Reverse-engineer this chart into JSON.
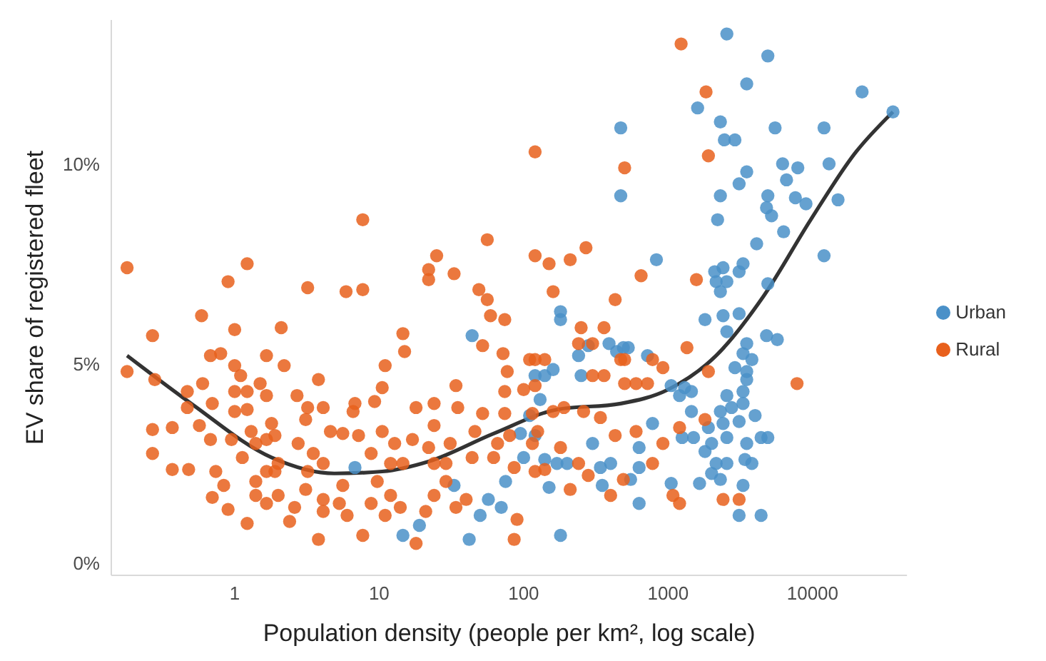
{
  "chart_data": {
    "type": "scatter",
    "xlabel": "Population density (people per km², log scale)",
    "ylabel": "EV share of registered fleet",
    "log": "x",
    "xlim": [
      0.14,
      45000
    ],
    "xticks": [
      1,
      10,
      100,
      1000,
      10000
    ],
    "ylim": [
      -0.3,
      13.6
    ],
    "yticks": [
      {
        "value": 0,
        "label": "0%"
      },
      {
        "value": 5,
        "label": "5%"
      },
      {
        "value": 10,
        "label": "10%"
      }
    ],
    "legend": "right",
    "marker": "circle",
    "series": [
      {
        "name": "Urban",
        "color": "#4a90c8",
        "x": [
          2550,
          4900,
          3500,
          22000,
          36000,
          1600,
          470,
          2300,
          2450,
          2900,
          5500,
          12000,
          470,
          6200,
          7900,
          13000,
          3500,
          3100,
          6600,
          2300,
          4900,
          7600,
          9000,
          15000,
          4800,
          5200,
          2200,
          6300,
          4100,
          12000,
          830,
          2100,
          2400,
          3300,
          3100,
          2150,
          2550,
          2300,
          4900,
          1800,
          2400,
          3100,
          4800,
          5700,
          180,
          180,
          390,
          530,
          2550,
          3500,
          3300,
          3800,
          2900,
          3500,
          3500,
          3300,
          2550,
          2750,
          3300,
          2300,
          4000,
          1300,
          1200,
          1450,
          1450,
          240,
          250,
          490,
          720,
          1050,
          1900,
          2400,
          3100,
          4400,
          4900,
          3500,
          2550,
          2000,
          1800,
          2150,
          2550,
          3400,
          3800,
          2000,
          2300,
          1650,
          3300,
          3100,
          4400,
          1500,
          1250,
          780,
          630,
          630,
          550,
          1050,
          630,
          180,
          300,
          400,
          130,
          140,
          160,
          440,
          280,
          120,
          170,
          200,
          140,
          150,
          340,
          350,
          44,
          6.8,
          14.6,
          19,
          33,
          42,
          50,
          57,
          70,
          75,
          100,
          110,
          120,
          95
        ],
        "values": [
          13.25,
          12.7,
          12.0,
          11.8,
          11.3,
          11.4,
          10.9,
          11.05,
          10.6,
          10.6,
          10.9,
          10.9,
          9.2,
          10.0,
          9.9,
          10.0,
          9.8,
          9.5,
          9.6,
          9.2,
          9.2,
          9.15,
          9.0,
          9.1,
          8.9,
          8.7,
          8.6,
          8.3,
          8.0,
          7.7,
          7.6,
          7.3,
          7.4,
          7.5,
          7.3,
          7.05,
          7.05,
          6.8,
          7.0,
          6.1,
          6.2,
          6.25,
          5.7,
          5.6,
          6.3,
          6.1,
          5.5,
          5.4,
          5.8,
          5.5,
          5.25,
          5.1,
          4.9,
          4.8,
          4.6,
          4.3,
          4.2,
          3.9,
          4.0,
          3.8,
          3.7,
          4.4,
          4.2,
          4.3,
          3.8,
          5.2,
          4.7,
          5.4,
          5.2,
          4.45,
          3.4,
          3.5,
          3.55,
          3.15,
          3.15,
          3.0,
          3.15,
          3.0,
          2.8,
          2.5,
          2.5,
          2.6,
          2.5,
          2.25,
          2.1,
          2.0,
          1.95,
          1.2,
          1.2,
          3.15,
          3.15,
          3.5,
          2.9,
          2.4,
          2.1,
          2.0,
          1.5,
          0.7,
          3.0,
          2.5,
          4.1,
          4.7,
          4.85,
          5.3,
          5.45,
          4.7,
          2.5,
          2.5,
          2.6,
          1.9,
          2.4,
          1.95,
          5.7,
          2.4,
          0.7,
          0.95,
          1.95,
          0.6,
          1.2,
          1.6,
          1.4,
          2.05,
          2.65,
          3.7,
          3.2,
          3.25
        ]
      },
      {
        "name": "Rural",
        "color": "#e8601c",
        "x": [
          1230,
          1830,
          1900,
          120,
          500,
          270,
          120,
          150,
          210,
          650,
          1570,
          160,
          430,
          360,
          7800,
          920,
          780,
          1900,
          1350,
          300,
          240,
          470,
          500,
          300,
          500,
          600,
          720,
          1800,
          2400,
          3100,
          1200,
          920,
          600,
          780,
          490,
          1080,
          1200,
          400,
          240,
          280,
          430,
          340,
          260,
          190,
          160,
          115,
          360,
          250,
          120,
          120,
          140,
          180,
          140,
          120,
          210,
          115,
          125,
          0.18,
          0.18,
          1.22,
          7.7,
          56,
          0.9,
          3.2,
          5.9,
          7.7,
          25,
          22,
          22,
          33,
          49,
          56,
          59,
          74,
          0.59,
          0.27,
          1.0,
          2.1,
          14.6,
          15,
          11,
          52,
          0.68,
          0.8,
          1.66,
          2.2,
          3.8,
          1.0,
          1.1,
          1.5,
          0.6,
          0.47,
          0.28,
          1.0,
          1.22,
          1.66,
          2.7,
          0.47,
          0.7,
          1.0,
          1.22,
          3.2,
          4.1,
          6.6,
          9.3,
          10.5,
          18,
          24,
          35,
          34,
          74,
          100,
          72,
          77,
          110,
          0.27,
          0.37,
          0.57,
          0.68,
          0.95,
          1.3,
          1.8,
          1.66,
          0.27,
          0.37,
          0.48,
          0.74,
          0.84,
          0.7,
          0.9,
          1.13,
          1.4,
          1.9,
          2.0,
          2.75,
          3.5,
          4.1,
          5.6,
          7.2,
          10.5,
          12.8,
          17,
          22,
          24,
          31,
          46,
          66,
          80,
          1.4,
          1.66,
          1.9,
          1.4,
          1.66,
          2.0,
          1.22,
          2.4,
          2.6,
          3.1,
          3.2,
          4.1,
          4.1,
          3.8,
          5.6,
          5.3,
          6.0,
          7.7,
          8.8,
          9.7,
          12,
          11,
          14,
          18,
          21,
          24,
          29,
          34,
          40,
          86,
          90,
          86,
          62,
          44,
          14.6,
          12,
          8.8,
          24,
          29,
          74,
          52,
          6.8,
          3.1,
          4.6
        ],
        "values": [
          13.0,
          11.8,
          10.2,
          10.3,
          9.9,
          7.9,
          7.7,
          7.5,
          7.6,
          7.2,
          7.1,
          6.8,
          6.6,
          5.9,
          4.5,
          4.9,
          5.1,
          4.8,
          5.4,
          5.5,
          5.5,
          5.1,
          5.1,
          4.7,
          4.5,
          4.5,
          4.5,
          3.6,
          1.6,
          1.6,
          3.4,
          3.0,
          3.3,
          2.5,
          2.1,
          1.7,
          1.5,
          1.7,
          2.5,
          2.2,
          3.2,
          3.65,
          3.8,
          3.9,
          3.8,
          3.75,
          4.7,
          5.9,
          4.45,
          5.1,
          5.1,
          2.9,
          2.35,
          2.3,
          1.85,
          3.0,
          3.3,
          7.4,
          4.8,
          7.5,
          8.6,
          8.1,
          7.05,
          6.9,
          6.8,
          6.85,
          7.7,
          7.35,
          7.1,
          7.25,
          6.85,
          6.6,
          6.2,
          6.1,
          6.2,
          5.7,
          5.85,
          5.9,
          5.75,
          5.3,
          4.95,
          5.45,
          5.2,
          5.25,
          5.2,
          4.95,
          4.6,
          4.95,
          4.7,
          4.5,
          4.5,
          4.3,
          4.6,
          4.3,
          4.3,
          4.2,
          4.2,
          3.9,
          4.0,
          3.8,
          3.85,
          3.9,
          3.9,
          3.8,
          4.05,
          4.4,
          3.9,
          4.0,
          3.9,
          4.45,
          4.3,
          4.35,
          5.25,
          4.8,
          5.1,
          3.35,
          3.4,
          3.45,
          3.1,
          3.1,
          3.3,
          3.5,
          3.1,
          2.75,
          2.35,
          2.35,
          2.3,
          1.95,
          1.65,
          1.35,
          2.65,
          3.0,
          3.2,
          2.5,
          3.0,
          2.75,
          2.5,
          3.25,
          3.2,
          3.3,
          3.0,
          3.1,
          2.9,
          3.45,
          3.0,
          3.3,
          3.0,
          3.2,
          2.05,
          2.3,
          2.3,
          1.7,
          1.5,
          1.7,
          1.0,
          1.05,
          1.4,
          1.85,
          2.3,
          1.6,
          1.3,
          0.6,
          1.95,
          1.5,
          1.2,
          0.7,
          1.5,
          2.05,
          1.7,
          1.2,
          1.4,
          0.5,
          1.3,
          1.7,
          2.05,
          1.4,
          1.6,
          0.6,
          1.1,
          2.4,
          2.65,
          2.65,
          2.5,
          2.5,
          2.75,
          2.5,
          2.5,
          3.75,
          3.75,
          4.0,
          3.6,
          3.3
        ]
      },
      {
        "type": "line",
        "marker": "none",
        "color": "#333333",
        "x": [
          0.18,
          0.5,
          1.8,
          4.9,
          10.5,
          22,
          62,
          170,
          470,
          1000,
          2150,
          4600,
          9700,
          20000,
          36000
        ],
        "values": [
          5.2,
          4.0,
          2.65,
          2.25,
          2.3,
          2.55,
          3.25,
          3.85,
          4.0,
          4.35,
          5.2,
          6.7,
          8.6,
          10.3,
          11.3
        ]
      }
    ]
  }
}
